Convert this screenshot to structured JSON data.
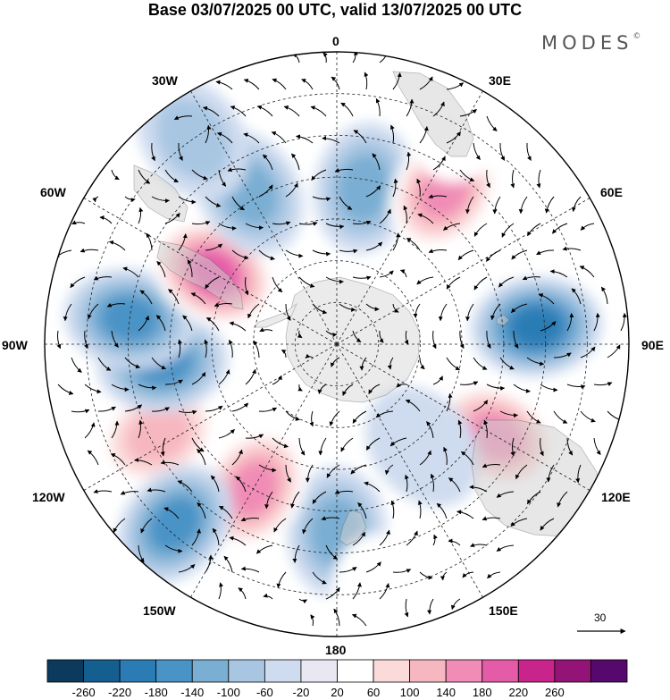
{
  "header": {
    "title": "Base 03/07/2025 00 UTC, valid 13/07/2025 00 UTC",
    "brand": "MODES",
    "brand_mark": "©"
  },
  "map": {
    "projection": "south-polar-stereographic",
    "longitude_labels": {
      "lon_0": "0",
      "lon_30e": "30E",
      "lon_60e": "60E",
      "lon_90e": "90E",
      "lon_120e": "120E",
      "lon_150e": "150E",
      "lon_180": "180",
      "lon_150w": "150W",
      "lon_120w": "120W",
      "lon_90w": "90W",
      "lon_60w": "60W",
      "lon_30w": "30W"
    },
    "reference_vector": "30",
    "anomaly_centers": [
      {
        "lon": 10,
        "lat": -52,
        "value": -140
      },
      {
        "lon": 35,
        "lat": -45,
        "value": 180
      },
      {
        "lon": 85,
        "lat": -42,
        "value": -200
      },
      {
        "lon": 120,
        "lat": -46,
        "value": 180
      },
      {
        "lon": 140,
        "lat": -58,
        "value": -60
      },
      {
        "lon": 180,
        "lat": -45,
        "value": -120
      },
      {
        "lon": 210,
        "lat": -50,
        "value": 180
      },
      {
        "lon": 243,
        "lat": -42,
        "value": 140
      },
      {
        "lon": 222,
        "lat": -32,
        "value": -160
      },
      {
        "lon": 264,
        "lat": -48,
        "value": -160
      },
      {
        "lon": 277,
        "lat": -40,
        "value": -180
      },
      {
        "lon": 300,
        "lat": -56,
        "value": 200
      },
      {
        "lon": 330,
        "lat": -48,
        "value": -140
      },
      {
        "lon": 325,
        "lat": -30,
        "value": -80
      },
      {
        "lon": 30,
        "lat": -28,
        "value": 60
      },
      {
        "lon": 170,
        "lat": -28,
        "value": 60
      }
    ]
  },
  "colorbar": {
    "colors": [
      "#0b3a5c",
      "#145f8f",
      "#2b7bb5",
      "#4a93c6",
      "#7aaed3",
      "#a8c6e2",
      "#cfdcef",
      "#e9e8f2",
      "#ffffff",
      "#fbdada",
      "#f7b7c0",
      "#f08cb5",
      "#e45ba8",
      "#c8248c",
      "#931476",
      "#56086c"
    ],
    "labels": [
      "-260",
      "-220",
      "-180",
      "-140",
      "-100",
      "-60",
      "-20",
      "20",
      "60",
      "100",
      "140",
      "180",
      "220",
      "260"
    ]
  }
}
